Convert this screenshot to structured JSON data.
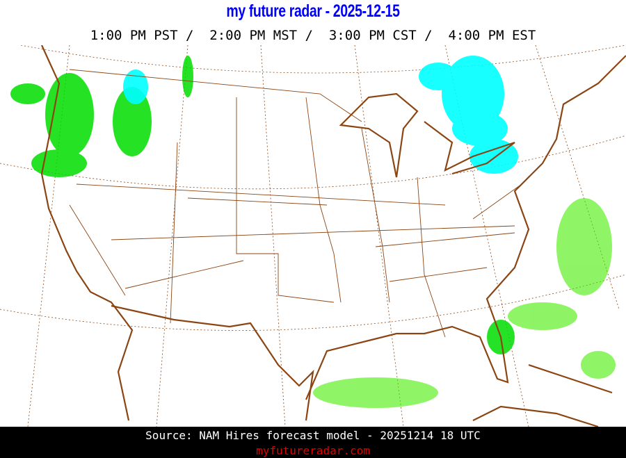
{
  "header": {
    "title": "my future radar - 2025-12-15",
    "times": "1:00 PM PST /  2:00 PM MST /  3:00 PM CST /  4:00 PM EST"
  },
  "map": {
    "region": "Continental United States",
    "layers": [
      "state-borders",
      "coastline",
      "graticule",
      "precipitation-forecast"
    ],
    "colors": {
      "borders": "#8b4513",
      "rain": "#00e000",
      "snow": "#00ffff",
      "graticule": "#8b4513"
    }
  },
  "footer": {
    "source": "Source: NAM Hires forecast model - 20251214 18 UTC",
    "site": "myfutureradar.com"
  },
  "colors": {
    "title": "#0000ff",
    "site": "#e00000",
    "footer_bg": "#000000"
  }
}
